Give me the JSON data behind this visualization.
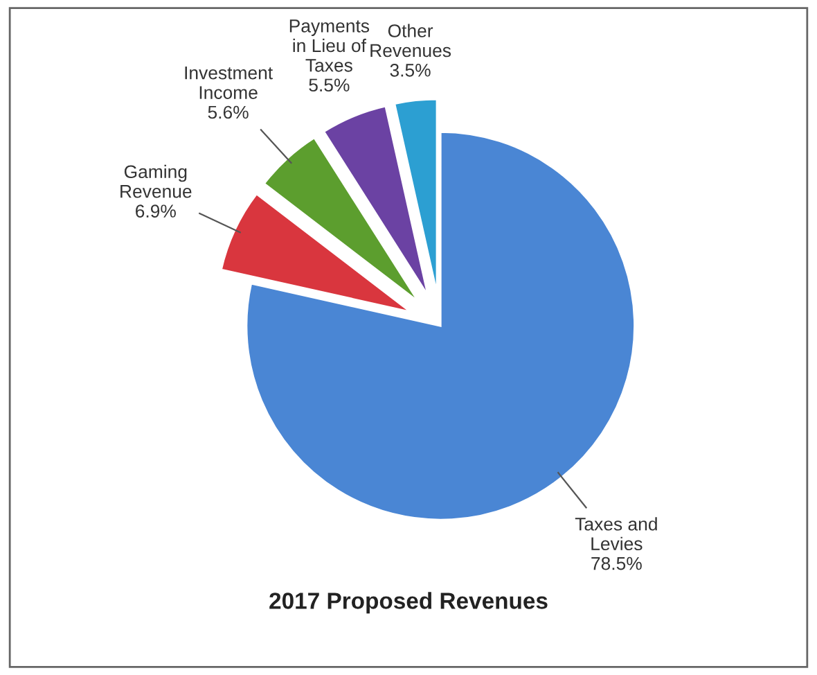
{
  "chart_data": {
    "type": "pie",
    "title": "2017 Proposed Revenues",
    "categories": [
      "Taxes and\nLevies",
      "Gaming\nRevenue",
      "Investment\nIncome",
      "Payments\nin Lieu of\nTaxes",
      "Other\nRevenues"
    ],
    "values": [
      78.5,
      6.9,
      5.6,
      5.5,
      3.5
    ],
    "colors": [
      "#4a86d4",
      "#d9363e",
      "#5c9e2e",
      "#6b42a3",
      "#2c9fd2"
    ],
    "value_labels": [
      "78.5%",
      "6.9%",
      "5.6%",
      "5.5%",
      "3.5%"
    ],
    "legend": false
  }
}
